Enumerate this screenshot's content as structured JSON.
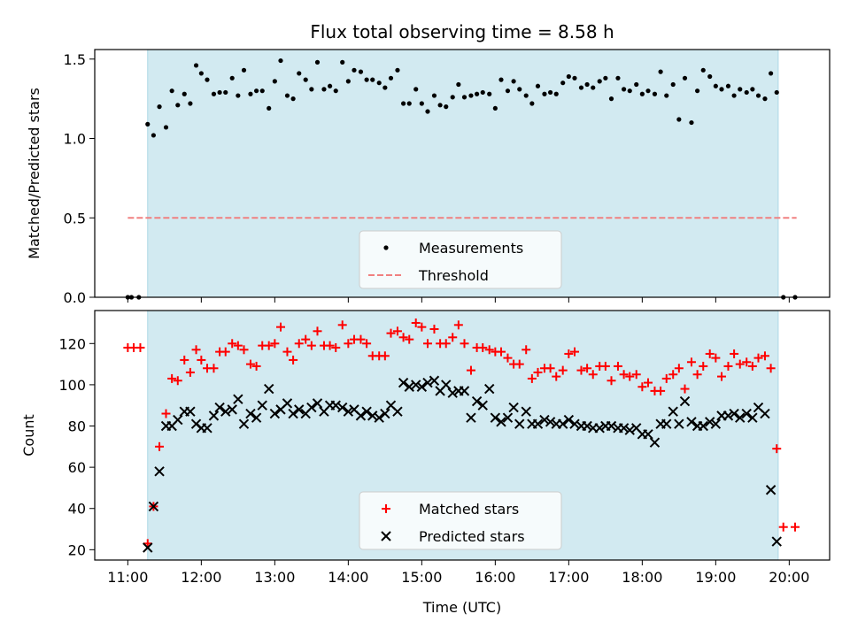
{
  "title": "Flux total observing time = 8.58 h",
  "colors": {
    "observing_band": "#add8e6",
    "measurement": "#000000",
    "threshold": "#f08080",
    "matched": "#ff0000",
    "predicted": "#000000"
  },
  "chart_data": [
    {
      "type": "scatter",
      "panel": "top",
      "ylabel": "Matched/Predicted stars",
      "ylim": [
        0,
        1.56
      ],
      "yticks": [
        0.0,
        0.5,
        1.0,
        1.5
      ],
      "ytick_labels": [
        "0.0",
        "0.5",
        "1.0",
        "1.5"
      ],
      "grid": false,
      "legend_position": "lower-center",
      "shaded_span": {
        "x_start": 11.27,
        "x_end": 19.85
      },
      "series": [
        {
          "name": "Measurements",
          "marker": "dot",
          "x": [
            11.0,
            11.05,
            11.15,
            11.27,
            11.35,
            11.43,
            11.52,
            11.6,
            11.68,
            11.77,
            11.85,
            11.93,
            12.0,
            12.08,
            12.17,
            12.25,
            12.33,
            12.42,
            12.5,
            12.58,
            12.67,
            12.75,
            12.83,
            12.92,
            13.0,
            13.08,
            13.17,
            13.25,
            13.33,
            13.42,
            13.5,
            13.58,
            13.67,
            13.75,
            13.83,
            13.92,
            14.0,
            14.08,
            14.17,
            14.25,
            14.33,
            14.42,
            14.5,
            14.58,
            14.67,
            14.75,
            14.83,
            14.92,
            15.0,
            15.08,
            15.17,
            15.25,
            15.33,
            15.42,
            15.5,
            15.58,
            15.67,
            15.75,
            15.83,
            15.92,
            16.0,
            16.08,
            16.17,
            16.25,
            16.33,
            16.42,
            16.5,
            16.58,
            16.67,
            16.75,
            16.83,
            16.92,
            17.0,
            17.08,
            17.17,
            17.25,
            17.33,
            17.42,
            17.5,
            17.58,
            17.67,
            17.75,
            17.83,
            17.92,
            18.0,
            18.08,
            18.17,
            18.25,
            18.33,
            18.42,
            18.5,
            18.58,
            18.67,
            18.75,
            18.83,
            18.92,
            19.0,
            19.08,
            19.17,
            19.25,
            19.33,
            19.42,
            19.5,
            19.58,
            19.67,
            19.75,
            19.83,
            19.92,
            20.08
          ],
          "y": [
            0.0,
            0.0,
            0.0,
            1.09,
            1.02,
            1.2,
            1.07,
            1.3,
            1.21,
            1.28,
            1.22,
            1.46,
            1.41,
            1.37,
            1.28,
            1.29,
            1.29,
            1.38,
            1.27,
            1.43,
            1.28,
            1.3,
            1.3,
            1.19,
            1.36,
            1.49,
            1.27,
            1.25,
            1.41,
            1.37,
            1.31,
            1.48,
            1.31,
            1.33,
            1.3,
            1.48,
            1.36,
            1.43,
            1.42,
            1.37,
            1.37,
            1.35,
            1.32,
            1.38,
            1.43,
            1.22,
            1.22,
            1.31,
            1.22,
            1.17,
            1.27,
            1.21,
            1.2,
            1.26,
            1.34,
            1.26,
            1.27,
            1.28,
            1.29,
            1.28,
            1.19,
            1.37,
            1.3,
            1.36,
            1.31,
            1.27,
            1.22,
            1.33,
            1.28,
            1.29,
            1.28,
            1.35,
            1.39,
            1.38,
            1.32,
            1.34,
            1.32,
            1.36,
            1.38,
            1.25,
            1.38,
            1.31,
            1.3,
            1.34,
            1.28,
            1.3,
            1.28,
            1.42,
            1.27,
            1.34,
            1.12,
            1.38,
            1.1,
            1.3,
            1.43,
            1.39,
            1.33,
            1.31,
            1.33,
            1.27,
            1.31,
            1.29,
            1.31,
            1.27,
            1.25,
            1.41,
            1.29,
            0.0,
            0.0
          ]
        },
        {
          "name": "Threshold",
          "marker": "dashed-line",
          "x": [
            11.0,
            20.1
          ],
          "y": [
            0.5,
            0.5
          ]
        }
      ]
    },
    {
      "type": "scatter",
      "panel": "bottom",
      "xlabel": "Time (UTC)",
      "ylabel": "Count",
      "xlim": [
        10.55,
        20.55
      ],
      "ylim": [
        15,
        136
      ],
      "xticks": [
        11,
        12,
        13,
        14,
        15,
        16,
        17,
        18,
        19,
        20
      ],
      "xtick_labels": [
        "11:00",
        "12:00",
        "13:00",
        "14:00",
        "15:00",
        "16:00",
        "17:00",
        "18:00",
        "19:00",
        "20:00"
      ],
      "yticks": [
        20,
        40,
        60,
        80,
        100,
        120
      ],
      "ytick_labels": [
        "20",
        "40",
        "60",
        "80",
        "100",
        "120"
      ],
      "grid": false,
      "legend_position": "lower-center",
      "shaded_span": {
        "x_start": 11.27,
        "x_end": 19.85
      },
      "series": [
        {
          "name": "Matched stars",
          "marker": "plus",
          "x": [
            11.0,
            11.08,
            11.17,
            11.27,
            11.35,
            11.43,
            11.52,
            11.6,
            11.68,
            11.77,
            11.85,
            11.93,
            12.0,
            12.08,
            12.17,
            12.25,
            12.33,
            12.42,
            12.5,
            12.58,
            12.67,
            12.75,
            12.83,
            12.92,
            13.0,
            13.08,
            13.17,
            13.25,
            13.33,
            13.42,
            13.5,
            13.58,
            13.67,
            13.75,
            13.83,
            13.92,
            14.0,
            14.08,
            14.17,
            14.25,
            14.33,
            14.42,
            14.5,
            14.58,
            14.67,
            14.75,
            14.83,
            14.92,
            15.0,
            15.08,
            15.17,
            15.25,
            15.33,
            15.42,
            15.5,
            15.58,
            15.67,
            15.75,
            15.83,
            15.92,
            16.0,
            16.08,
            16.17,
            16.25,
            16.33,
            16.42,
            16.5,
            16.58,
            16.67,
            16.75,
            16.83,
            16.92,
            17.0,
            17.08,
            17.17,
            17.25,
            17.33,
            17.42,
            17.5,
            17.58,
            17.67,
            17.75,
            17.83,
            17.92,
            18.0,
            18.08,
            18.17,
            18.25,
            18.33,
            18.42,
            18.5,
            18.58,
            18.67,
            18.75,
            18.83,
            18.92,
            19.0,
            19.08,
            19.17,
            19.25,
            19.33,
            19.42,
            19.5,
            19.58,
            19.67,
            19.75,
            19.83,
            19.92,
            20.08
          ],
          "y": [
            118,
            118,
            118,
            23,
            41,
            70,
            86,
            103,
            102,
            112,
            106,
            117,
            112,
            108,
            108,
            116,
            116,
            120,
            119,
            117,
            110,
            109,
            119,
            119,
            120,
            128,
            116,
            112,
            120,
            122,
            119,
            126,
            119,
            119,
            118,
            129,
            120,
            122,
            122,
            120,
            114,
            114,
            114,
            125,
            126,
            123,
            122,
            130,
            128,
            120,
            127,
            120,
            120,
            123,
            129,
            120,
            107,
            118,
            118,
            117,
            116,
            116,
            113,
            110,
            110,
            117,
            103,
            106,
            108,
            108,
            104,
            107,
            115,
            116,
            107,
            108,
            105,
            109,
            109,
            102,
            109,
            105,
            104,
            105,
            99,
            101,
            97,
            97,
            103,
            105,
            108,
            98,
            111,
            105,
            109,
            115,
            113,
            104,
            109,
            115,
            110,
            111,
            109,
            113,
            114,
            108,
            69,
            31,
            31
          ],
          "x_end_extra": [
            20.08
          ],
          "y_end_extra": [
            31
          ]
        },
        {
          "name": "Predicted stars",
          "marker": "x",
          "x": [
            11.27,
            11.35,
            11.43,
            11.52,
            11.6,
            11.68,
            11.77,
            11.85,
            11.93,
            12.0,
            12.08,
            12.17,
            12.25,
            12.33,
            12.42,
            12.5,
            12.58,
            12.67,
            12.75,
            12.83,
            12.92,
            13.0,
            13.08,
            13.17,
            13.25,
            13.33,
            13.42,
            13.5,
            13.58,
            13.67,
            13.75,
            13.83,
            13.92,
            14.0,
            14.08,
            14.17,
            14.25,
            14.33,
            14.42,
            14.5,
            14.58,
            14.67,
            14.75,
            14.83,
            14.92,
            15.0,
            15.08,
            15.17,
            15.25,
            15.33,
            15.42,
            15.5,
            15.58,
            15.67,
            15.75,
            15.83,
            15.92,
            16.0,
            16.08,
            16.17,
            16.25,
            16.33,
            16.42,
            16.5,
            16.58,
            16.67,
            16.75,
            16.83,
            16.92,
            17.0,
            17.08,
            17.17,
            17.25,
            17.33,
            17.42,
            17.5,
            17.58,
            17.67,
            17.75,
            17.83,
            17.92,
            18.0,
            18.08,
            18.17,
            18.25,
            18.33,
            18.42,
            18.5,
            18.58,
            18.67,
            18.75,
            18.83,
            18.92,
            19.0,
            19.08,
            19.17,
            19.25,
            19.33,
            19.42,
            19.5,
            19.58,
            19.67,
            19.75,
            19.83
          ],
          "y": [
            21,
            41,
            58,
            80,
            80,
            83,
            87,
            87,
            81,
            79,
            79,
            85,
            89,
            87,
            88,
            93,
            81,
            86,
            84,
            90,
            98,
            86,
            88,
            91,
            86,
            88,
            86,
            89,
            91,
            87,
            90,
            90,
            89,
            87,
            88,
            85,
            87,
            85,
            84,
            86,
            90,
            87,
            101,
            99,
            100,
            99,
            101,
            102,
            97,
            100,
            96,
            97,
            97,
            84,
            92,
            90,
            98,
            84,
            82,
            84,
            89,
            81,
            87,
            81,
            81,
            83,
            82,
            81,
            81,
            83,
            81,
            80,
            80,
            79,
            79,
            80,
            80,
            79,
            79,
            78,
            79,
            76,
            76,
            72,
            81,
            81,
            87,
            81,
            92,
            82,
            80,
            80,
            82,
            81,
            85,
            85,
            86,
            84,
            86,
            84,
            89,
            86,
            49,
            24
          ]
        }
      ]
    }
  ]
}
